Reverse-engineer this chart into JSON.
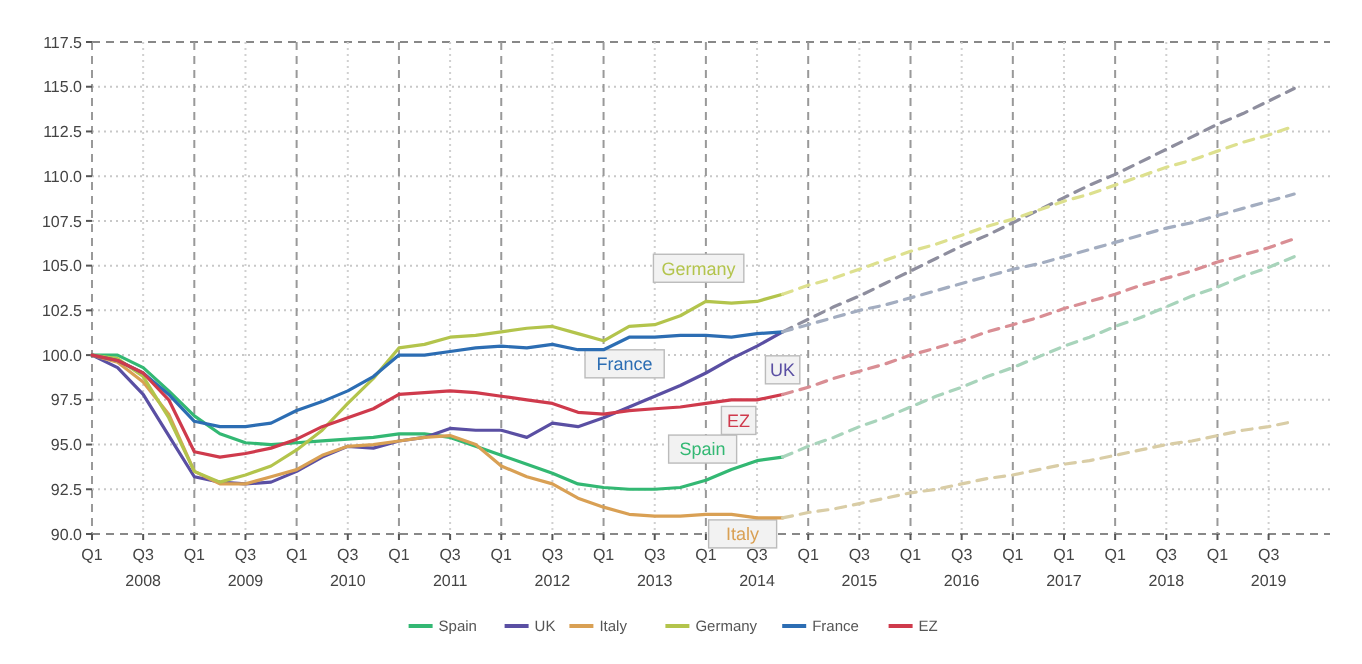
{
  "chart_data": {
    "type": "line",
    "categories": [
      "Q1",
      null,
      "Q3 2008",
      null,
      "Q1",
      null,
      "Q3 2009",
      null,
      "Q1",
      null,
      "Q3 2010",
      null,
      "Q1",
      null,
      "Q3 2011",
      null,
      "Q1",
      null,
      "Q3 2012",
      null,
      "Q1",
      null,
      "Q3 2013",
      null,
      "Q1",
      null,
      "Q3 2014",
      null,
      "Q1",
      null,
      "Q3 2015",
      null,
      "Q1",
      null,
      "Q3 2016",
      null,
      "Q1",
      null,
      "Q1 2017",
      null,
      "Q1",
      null,
      "Q3 2018",
      null,
      "Q1",
      null,
      "Q3 2019",
      null
    ],
    "series": [
      {
        "name": "Spain",
        "color": "#33b873",
        "values": [
          100,
          100,
          99.3,
          98,
          96.6,
          95.6,
          95.1,
          95,
          95.1,
          95.2,
          95.3,
          95.4,
          95.6,
          95.6,
          95.4,
          94.9,
          94.4,
          93.9,
          93.4,
          92.8,
          92.6,
          92.5,
          92.5,
          92.6,
          93,
          93.6,
          94.1,
          94.3,
          null,
          null,
          null,
          null,
          null,
          null,
          null,
          null,
          null,
          null,
          null,
          null,
          null,
          null,
          null,
          null,
          null,
          null,
          null,
          null
        ]
      },
      {
        "name": "UK",
        "color": "#5a4fa3",
        "values": [
          100,
          99.3,
          97.8,
          95.5,
          93.2,
          92.9,
          92.8,
          92.9,
          93.5,
          94.3,
          94.9,
          94.8,
          95.2,
          95.4,
          95.9,
          95.8,
          95.8,
          95.4,
          96.2,
          96,
          96.5,
          97.1,
          97.7,
          98.3,
          99,
          99.8,
          100.5,
          101.3,
          null,
          null,
          null,
          null,
          null,
          null,
          null,
          null,
          null,
          null,
          null,
          null,
          null,
          null,
          null,
          null,
          null,
          null,
          null,
          null
        ]
      },
      {
        "name": "Italy",
        "color": "#d9a054",
        "values": [
          100,
          99.6,
          98.5,
          96.7,
          93.5,
          92.8,
          92.8,
          93.2,
          93.6,
          94.4,
          94.9,
          95,
          95.2,
          95.4,
          95.5,
          95,
          93.8,
          93.2,
          92.8,
          92,
          91.5,
          91.1,
          91,
          91,
          91.1,
          91.1,
          90.9,
          90.9,
          null,
          null,
          null,
          null,
          null,
          null,
          null,
          null,
          null,
          null,
          null,
          null,
          null,
          null,
          null,
          null,
          null,
          null,
          null,
          null
        ]
      },
      {
        "name": "Germany",
        "color": "#b3c44c",
        "values": [
          100,
          99.8,
          98.8,
          96.5,
          93.5,
          92.9,
          93.3,
          93.8,
          94.7,
          95.8,
          97.3,
          98.7,
          100.4,
          100.6,
          101,
          101.1,
          101.3,
          101.5,
          101.6,
          101.2,
          100.8,
          101.6,
          101.7,
          102.2,
          103,
          102.9,
          103,
          103.4,
          null,
          null,
          null,
          null,
          null,
          null,
          null,
          null,
          null,
          null,
          null,
          null,
          null,
          null,
          null,
          null,
          null,
          null,
          null,
          null
        ]
      },
      {
        "name": "France",
        "color": "#2c6db3",
        "values": [
          100,
          99.7,
          99,
          97.8,
          96.3,
          96,
          96,
          96.2,
          96.9,
          97.4,
          98,
          98.8,
          100,
          100,
          100.2,
          100.4,
          100.5,
          100.4,
          100.6,
          100.3,
          100.3,
          101,
          101,
          101.1,
          101.1,
          101,
          101.2,
          101.3,
          null,
          null,
          null,
          null,
          null,
          null,
          null,
          null,
          null,
          null,
          null,
          null,
          null,
          null,
          null,
          null,
          null,
          null,
          null,
          null
        ]
      },
      {
        "name": "EZ",
        "color": "#cf3a4c",
        "values": [
          100,
          99.7,
          99,
          97.5,
          94.6,
          94.3,
          94.5,
          94.8,
          95.3,
          96,
          96.5,
          97,
          97.8,
          97.9,
          98,
          97.9,
          97.7,
          97.5,
          97.3,
          96.8,
          96.7,
          96.9,
          97,
          97.1,
          97.3,
          97.5,
          97.5,
          97.8,
          null,
          null,
          null,
          null,
          null,
          null,
          null,
          null,
          null,
          null,
          null,
          null,
          null,
          null,
          null,
          null,
          null,
          null,
          null,
          null
        ]
      },
      {
        "color": "#a8d4bb",
        "line_style": "dashed",
        "values": [
          null,
          null,
          null,
          null,
          null,
          null,
          null,
          null,
          null,
          null,
          null,
          null,
          null,
          null,
          null,
          null,
          null,
          null,
          null,
          null,
          null,
          null,
          null,
          null,
          null,
          null,
          null,
          94.3,
          94.9,
          95.4,
          96.0,
          96.5,
          97.1,
          97.7,
          98.2,
          98.8,
          99.3,
          99.9,
          100.5,
          101.0,
          101.6,
          102.1,
          102.7,
          103.3,
          103.8,
          104.4,
          104.9,
          105.5
        ]
      },
      {
        "color": "#8e8e9e",
        "line_style": "dashed",
        "values": [
          null,
          null,
          null,
          null,
          null,
          null,
          null,
          null,
          null,
          null,
          null,
          null,
          null,
          null,
          null,
          null,
          null,
          null,
          null,
          null,
          null,
          null,
          null,
          null,
          null,
          null,
          null,
          101.3,
          102.0,
          102.7,
          103.3,
          104.0,
          104.7,
          105.4,
          106.1,
          106.7,
          107.4,
          108.1,
          108.8,
          109.5,
          110.1,
          110.8,
          111.5,
          112.2,
          112.9,
          113.5,
          114.2,
          114.9
        ]
      },
      {
        "color": "#d9cda6",
        "line_style": "dashed",
        "values": [
          null,
          null,
          null,
          null,
          null,
          null,
          null,
          null,
          null,
          null,
          null,
          null,
          null,
          null,
          null,
          null,
          null,
          null,
          null,
          null,
          null,
          null,
          null,
          null,
          null,
          null,
          null,
          90.9,
          91.2,
          91.4,
          91.7,
          92.0,
          92.3,
          92.5,
          92.8,
          93.1,
          93.3,
          93.6,
          93.9,
          94.1,
          94.4,
          94.7,
          95.0,
          95.2,
          95.5,
          95.8,
          96.0,
          96.3
        ]
      },
      {
        "color": "#dde08e",
        "line_style": "dashed",
        "values": [
          null,
          null,
          null,
          null,
          null,
          null,
          null,
          null,
          null,
          null,
          null,
          null,
          null,
          null,
          null,
          null,
          null,
          null,
          null,
          null,
          null,
          null,
          null,
          null,
          null,
          null,
          null,
          103.4,
          103.9,
          104.3,
          104.8,
          105.3,
          105.8,
          106.2,
          106.7,
          107.2,
          107.6,
          108.1,
          108.6,
          109.0,
          109.5,
          110.0,
          110.5,
          110.9,
          111.4,
          111.9,
          112.3,
          112.8
        ]
      },
      {
        "color": "#a3adc0",
        "line_style": "dashed",
        "values": [
          null,
          null,
          null,
          null,
          null,
          null,
          null,
          null,
          null,
          null,
          null,
          null,
          null,
          null,
          null,
          null,
          null,
          null,
          null,
          null,
          null,
          null,
          null,
          null,
          null,
          null,
          null,
          101.3,
          101.7,
          102.1,
          102.5,
          102.8,
          103.2,
          103.6,
          104.0,
          104.4,
          104.8,
          105.1,
          105.5,
          105.9,
          106.3,
          106.7,
          107.1,
          107.4,
          107.8,
          108.2,
          108.6,
          109.0
        ]
      },
      {
        "color": "#d98e94",
        "line_style": "dashed",
        "values": [
          null,
          null,
          null,
          null,
          null,
          null,
          null,
          null,
          null,
          null,
          null,
          null,
          null,
          null,
          null,
          null,
          null,
          null,
          null,
          null,
          null,
          null,
          null,
          null,
          null,
          null,
          null,
          97.8,
          98.2,
          98.7,
          99.1,
          99.5,
          100.0,
          100.4,
          100.8,
          101.3,
          101.7,
          102.1,
          102.6,
          103.0,
          103.4,
          103.9,
          104.3,
          104.7,
          105.2,
          105.6,
          106.0,
          106.5
        ]
      }
    ],
    "ylim": [
      90,
      117.5
    ],
    "yticks": [
      {
        "value": 90,
        "label": "90.0"
      },
      {
        "value": 92.5,
        "label": "92.5"
      },
      {
        "value": 95,
        "label": "95.0"
      },
      {
        "value": 97.5,
        "label": "97.5"
      },
      {
        "value": 100,
        "label": "100.0"
      },
      {
        "value": 102.5,
        "label": "102.5"
      },
      {
        "value": 105,
        "label": "105.0"
      },
      {
        "value": 107.5,
        "label": "107.5"
      },
      {
        "value": 110,
        "label": "110.0"
      },
      {
        "value": 112.5,
        "label": "112.5"
      },
      {
        "value": 115,
        "label": "115.0"
      },
      {
        "value": 117.5,
        "label": "117.5"
      }
    ],
    "grid": true,
    "legend": "bottom",
    "line_style": "solid",
    "marker": "none"
  }
}
